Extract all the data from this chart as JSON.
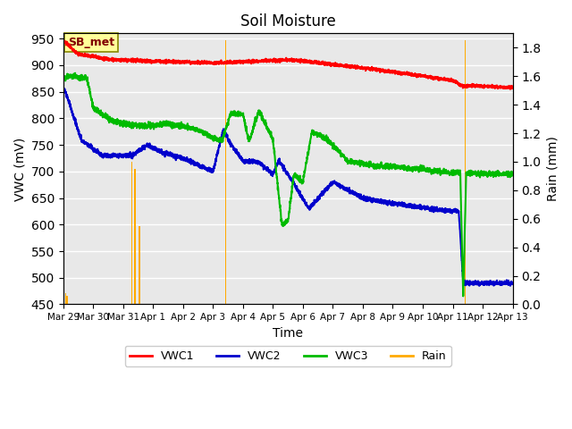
{
  "title": "Soil Moisture",
  "xlabel": "Time",
  "ylabel_left": "VWC (mV)",
  "ylabel_right": "Rain (mm)",
  "ylim_left": [
    450,
    960
  ],
  "ylim_right": [
    0.0,
    1.9
  ],
  "yticks_left": [
    450,
    500,
    550,
    600,
    650,
    700,
    750,
    800,
    850,
    900,
    950
  ],
  "yticks_right": [
    0.0,
    0.2,
    0.4,
    0.6,
    0.8,
    1.0,
    1.2,
    1.4,
    1.6,
    1.8
  ],
  "bg_color": "#e8e8e8",
  "grid_color": "#ffffff",
  "annotation_text": "SB_met",
  "annotation_box_color": "#ffff99",
  "annotation_text_color": "#800000",
  "vwc1_color": "#ff0000",
  "vwc2_color": "#0000cc",
  "vwc3_color": "#00bb00",
  "rain_color": "#ffaa00",
  "line_width": 1.5,
  "xtick_labels": [
    "Mar 29",
    "Mar 30",
    "Mar 31",
    "Apr 1",
    "Apr 2",
    "Apr 3",
    "Apr 4",
    "Apr 5",
    "Apr 6",
    "Apr 7",
    "Apr 8",
    "Apr 9",
    "Apr 10",
    "Apr 11",
    "Apr 12",
    "Apr 13"
  ],
  "rain_events": {
    "days": [
      0.08,
      0.13,
      2.3,
      2.4,
      2.55,
      5.42,
      13.42
    ],
    "heights": [
      0.08,
      0.06,
      1.0,
      0.95,
      0.55,
      1.85,
      1.85
    ]
  }
}
